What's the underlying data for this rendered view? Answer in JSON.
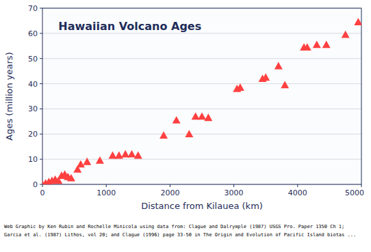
{
  "chart_data": {
    "type": "scatter",
    "title": "Hawaiian  Volcano Ages",
    "x_label": "Distance from Kilauea (km)",
    "y_label": "Ages (million years)",
    "annotations": [
      "Web Graphic by Ken Rubin and Rochelle Minicola using data from: Clague and Dalrymple (1987) USGS Pro. Paper 1350 Ch 1;",
      "Garcia et al. (1987) Lithos, vol 20; and Clague (1996) page 33-50 in The Origin and Evolution of Pacific Island biotas ..."
    ],
    "x": [
      0,
      50,
      100,
      150,
      200,
      250,
      300,
      350,
      400,
      450,
      550,
      600,
      700,
      900,
      1100,
      1200,
      1300,
      1400,
      1500,
      1900,
      2100,
      2300,
      2400,
      2500,
      2600,
      3050,
      3100,
      3450,
      3500,
      3700,
      3800,
      4100,
      4150,
      4300,
      4450,
      4750,
      4950
    ],
    "values": [
      0,
      0.5,
      1.0,
      1.5,
      2.0,
      1.5,
      3.5,
      4.0,
      3.0,
      2.5,
      6.0,
      8.0,
      9.0,
      9.5,
      11.5,
      11.5,
      12.0,
      12.0,
      11.5,
      19.5,
      25.5,
      20.0,
      27.0,
      27.0,
      26.5,
      38.0,
      38.5,
      42.0,
      42.5,
      47.0,
      39.5,
      54.5,
      54.5,
      55.5,
      55.5,
      59.5,
      64.5
    ],
    "color": "#ff4040",
    "marker": "triangle",
    "xlim": [
      0,
      5000
    ],
    "ylim": [
      0,
      70
    ],
    "xticks": [
      0,
      1000,
      2000,
      3000,
      4000,
      5000
    ],
    "yticks": [
      0,
      10,
      20,
      30,
      40,
      50,
      60,
      70
    ],
    "grid": "y"
  }
}
